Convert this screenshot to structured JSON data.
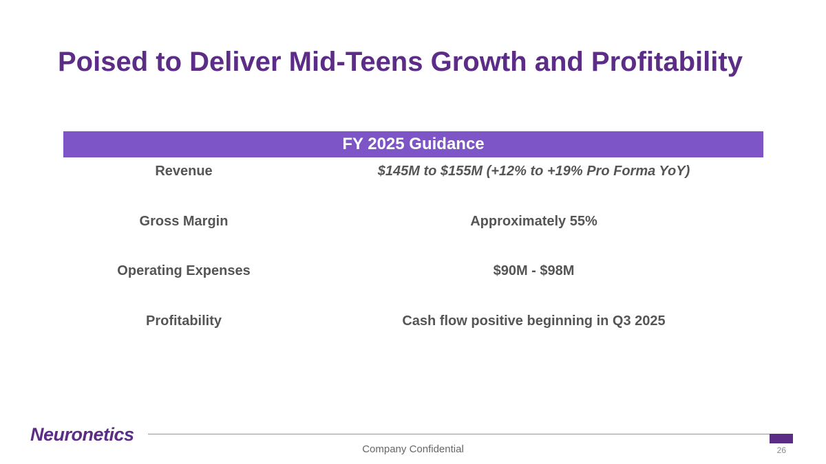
{
  "slide": {
    "title": "Poised to Deliver Mid-Teens Growth and Profitability"
  },
  "guidance": {
    "header": "FY 2025 Guidance",
    "rows": [
      {
        "label": "Revenue",
        "value": "$145M to $155M (+12% to +19% Pro Forma YoY)"
      },
      {
        "label": "Gross Margin",
        "value": "Approximately 55%"
      },
      {
        "label": "Operating Expenses",
        "value": "$90M - $98M"
      },
      {
        "label": "Profitability",
        "value": "Cash flow positive beginning in Q3 2025"
      }
    ]
  },
  "footer": {
    "logo_text": "Neuronetics",
    "confidential": "Company Confidential",
    "page_number": "26"
  },
  "colors": {
    "brand_purple": "#5b2d86",
    "header_purple": "#7e55c6",
    "body_text": "#555555"
  }
}
